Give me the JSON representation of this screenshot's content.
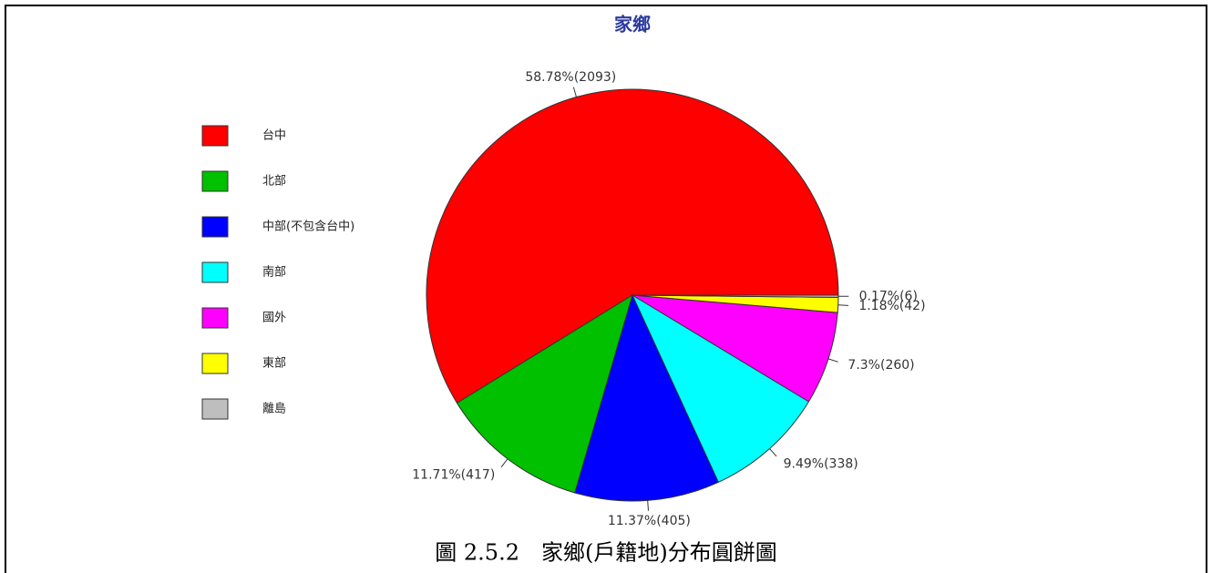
{
  "chart_data": {
    "type": "pie",
    "title": "家鄉",
    "categories": [
      "台中",
      "北部",
      "中部(不包含台中)",
      "南部",
      "國外",
      "東部",
      "離島"
    ],
    "values": [
      58.78,
      11.71,
      11.37,
      9.49,
      7.3,
      1.18,
      0.17
    ],
    "value_labels": [
      "58.78%(2093)",
      "11.71%(417)",
      "11.37%(405)",
      "9.49%(338)",
      "7.3%(260)",
      "1.18%(42)",
      "0.17%(6)"
    ],
    "colors": [
      "#ff0000",
      "#00c000",
      "#0000ff",
      "#00ffff",
      "#ff00ff",
      "#ffff00",
      "#bebebe"
    ],
    "legend": "left",
    "caption": "圖 2.5.2　家鄉(戶籍地)分布圓餅圖"
  }
}
